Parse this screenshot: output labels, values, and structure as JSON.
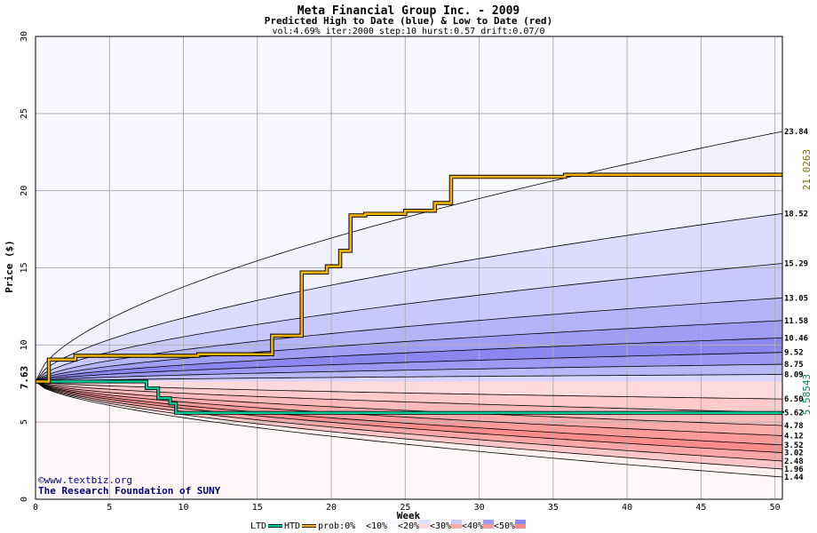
{
  "chart_data": {
    "type": "area",
    "title": "Meta Financial Group Inc. - 2009",
    "subtitle": "Predicted High to Date (blue) &  Low to Date (red)",
    "params": "vol:4.69% iter:2000 step:10 hurst:0.57 drift:0.07/0",
    "xlabel": "Week",
    "ylabel": "Price ($)",
    "xlim": [
      0,
      50.5
    ],
    "ylim": [
      0,
      30
    ],
    "x_ticks": [
      "0",
      "5",
      "10",
      "15",
      "20",
      "25",
      "30",
      "35",
      "40",
      "45",
      "50"
    ],
    "y_ticks": [
      "0",
      "5",
      "10",
      "15",
      "20",
      "25",
      "30"
    ],
    "grid": true,
    "start_price": "7.63",
    "high_levels": [
      "23.84",
      "18.52",
      "15.29",
      "13.05",
      "11.58",
      "10.46",
      "9.52",
      "8.75",
      "8.09"
    ],
    "low_levels": [
      "6.50",
      "5.62",
      "4.78",
      "4.12",
      "3.52",
      "3.02",
      "2.48",
      "1.96",
      "1.44"
    ],
    "actual_high_value": "21.0263",
    "actual_low_value": "5.58543",
    "htd_series": {
      "name": "HTD",
      "x": [
        0,
        0.9,
        2.7,
        11,
        16,
        18,
        19.7,
        20.6,
        21.3,
        22.3,
        25,
        27,
        28.1,
        35.8,
        50.5
      ],
      "y": [
        7.63,
        9.05,
        9.3,
        9.4,
        10.6,
        14.7,
        15.1,
        16.1,
        18.4,
        18.5,
        18.7,
        19.2,
        20.9,
        21.03,
        21.03
      ]
    },
    "ltd_series": {
      "name": "LTD",
      "x": [
        0,
        7.5,
        8.3,
        9.1,
        9.5,
        50.5
      ],
      "y": [
        7.63,
        7.2,
        6.55,
        6.2,
        5.6,
        5.59
      ]
    },
    "legend": {
      "items": [
        "LTD",
        "HTD",
        "prob:0%",
        "<10%",
        "<20%",
        "<30%",
        "<40%",
        "<50%"
      ]
    },
    "colors": {
      "blue_bands": [
        "#f2f2ff",
        "#dcdcff",
        "#c8c8fb",
        "#b4b4f8",
        "#9e9ef4",
        "#8888f0",
        "#9a9af4",
        "#b8b8f8",
        "#d6d6fd"
      ],
      "red_bands": [
        "#ffdada",
        "#ffcaca",
        "#fdbaba",
        "#fcaaaa",
        "#fa9a9a",
        "#fa8c8c",
        "#fba6a6",
        "#fdc6c6",
        "#fff0f0"
      ],
      "htd": "#f2b400",
      "ltd": "#00c896",
      "grid": "#b0b0b0",
      "high_label": "#7a6a00",
      "low_label": "#008a5a",
      "start_label": "#006400",
      "credit": "#000080"
    },
    "credit_lines": [
      "©www.textbiz.org",
      "The Research Foundation of SUNY"
    ]
  }
}
